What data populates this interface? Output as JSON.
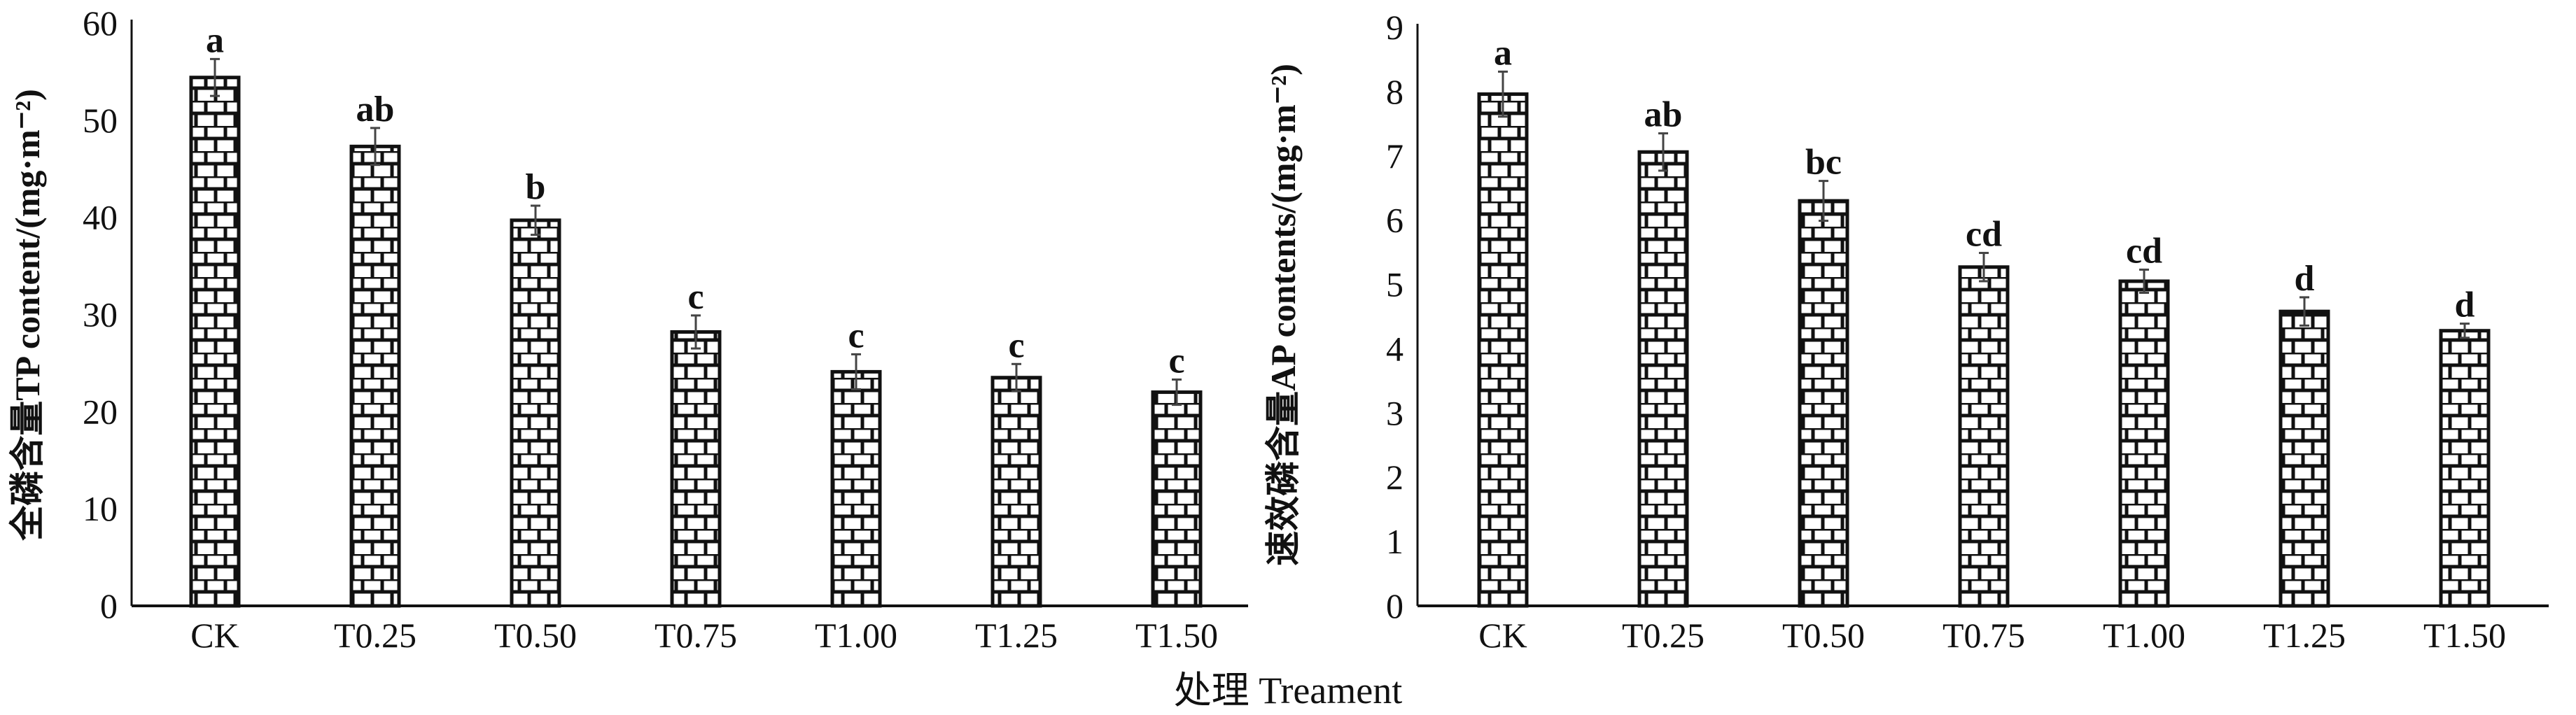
{
  "chart_data": [
    {
      "type": "bar",
      "title": "",
      "ylabel": "全磷含量TP content/(mg·m⁻²)",
      "xlabel": "处理 Treament",
      "categories": [
        "CK",
        "T0.25",
        "T0.50",
        "T0.75",
        "T1.00",
        "T1.25",
        "T1.50"
      ],
      "values": [
        54.4,
        47.3,
        39.7,
        28.2,
        24.1,
        23.5,
        22.0
      ],
      "errors": [
        1.9,
        1.9,
        1.5,
        1.7,
        1.8,
        1.4,
        1.3
      ],
      "letters": [
        "a",
        "ab",
        "b",
        "c",
        "c",
        "c",
        "c"
      ],
      "ylim": [
        0,
        60
      ],
      "yticks": [
        "0",
        "10",
        "20",
        "30",
        "40",
        "50",
        "60"
      ],
      "ytick_values": [
        0,
        10,
        20,
        30,
        40,
        50,
        60
      ],
      "grid": false,
      "pattern": "brick"
    },
    {
      "type": "bar",
      "title": "",
      "ylabel": "速效磷含量AP contents/(mg·m⁻²)",
      "xlabel": "处理 Treament",
      "categories": [
        "CK",
        "T0.25",
        "T0.50",
        "T0.75",
        "T1.00",
        "T1.25",
        "T1.50"
      ],
      "values": [
        7.96,
        7.06,
        6.3,
        5.27,
        5.05,
        4.58,
        4.28
      ],
      "errors": [
        0.35,
        0.29,
        0.31,
        0.22,
        0.18,
        0.22,
        0.11
      ],
      "letters": [
        "a",
        "ab",
        "bc",
        "cd",
        "cd",
        "d",
        "d"
      ],
      "ylim": [
        0,
        9
      ],
      "yticks": [
        "0",
        "1",
        "2",
        "3",
        "4",
        "5",
        "6",
        "7",
        "8",
        "9"
      ],
      "ytick_values": [
        0,
        1,
        2,
        3,
        4,
        5,
        6,
        7,
        8,
        9
      ],
      "grid": false,
      "pattern": "brick"
    }
  ],
  "shared_xlabel": "处理 Treament",
  "colors": {
    "bar_stroke": "#111111",
    "bar_fill": "#ffffff",
    "error": "#444444"
  }
}
